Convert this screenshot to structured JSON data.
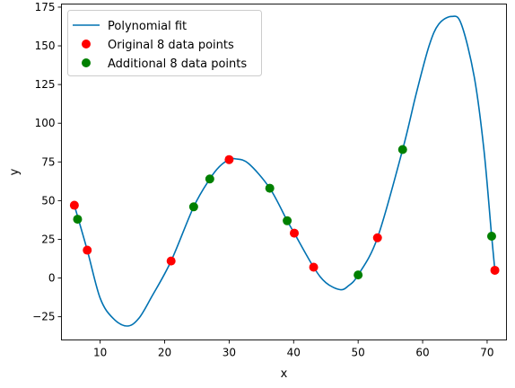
{
  "chart_data": {
    "type": "scatter",
    "title": "",
    "xlabel": "x",
    "ylabel": "y",
    "xlim": [
      4,
      73
    ],
    "ylim": [
      -40,
      177
    ],
    "xticks": [
      10,
      20,
      30,
      40,
      50,
      60,
      70
    ],
    "yticks": [
      -25,
      0,
      25,
      50,
      75,
      100,
      125,
      150,
      175
    ],
    "grid": false,
    "legend_position": "top-left",
    "fit_curve": {
      "name": "Polynomial fit",
      "color": "#0072B2",
      "x": [
        6,
        8,
        10,
        12,
        14.2,
        16,
        18,
        21,
        24.5,
        27,
        28.5,
        30,
        31,
        33,
        36.3,
        39,
        40.1,
        43.1,
        45,
        47.2,
        48.5,
        50,
        53,
        56.9,
        59,
        61,
        62.5,
        64.5,
        66,
        68,
        69.5,
        70.7,
        71.2
      ],
      "y": [
        47,
        18,
        -13,
        -26,
        -31,
        -26,
        -12,
        11,
        46,
        64,
        72,
        76.5,
        77,
        74,
        58,
        37,
        29,
        7,
        -3,
        -7.5,
        -5,
        2,
        26,
        83,
        119,
        150,
        164,
        169,
        164,
        130,
        83,
        27,
        5
      ]
    },
    "series": [
      {
        "name": "Original 8 data points",
        "color": "#FF0000",
        "x": [
          6,
          8,
          21,
          30,
          40.1,
          43.1,
          53,
          71.2
        ],
        "y": [
          47,
          18,
          11,
          76.5,
          29,
          7,
          26,
          5
        ]
      },
      {
        "name": "Additional 8 data points",
        "color": "#008000",
        "x": [
          6.5,
          24.5,
          27,
          36.3,
          39,
          50,
          56.9,
          70.7
        ],
        "y": [
          38,
          46,
          64,
          58,
          37,
          2,
          83,
          27
        ]
      }
    ]
  }
}
